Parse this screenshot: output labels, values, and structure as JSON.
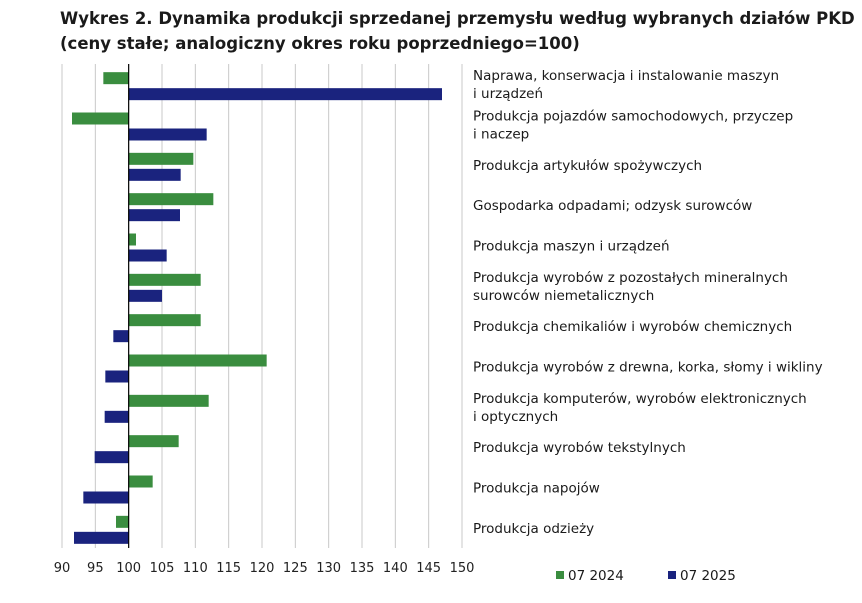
{
  "chart_data": {
    "type": "bar",
    "orientation": "horizontal",
    "title": "Wykres 2. Dynamika produkcji sprzedanej przemysłu według wybranych działów PKD (ceny stałe; analogiczny okres roku poprzedniego=100)",
    "xlim": [
      90,
      150
    ],
    "baseline": 100,
    "xticks": [
      90,
      95,
      100,
      105,
      110,
      115,
      120,
      125,
      130,
      135,
      140,
      145,
      150
    ],
    "grid": true,
    "legend_position": "bottom-right",
    "categories": [
      [
        "Naprawa, konserwacja i instalowanie maszyn",
        "i urządzeń"
      ],
      [
        "Produkcja pojazdów samochodowych, przyczep",
        "i naczep"
      ],
      [
        "Produkcja artykułów spożywczych"
      ],
      [
        "Gospodarka odpadami; odzysk surowców"
      ],
      [
        "Produkcja maszyn i urządzeń"
      ],
      [
        "Produkcja wyrobów z pozostałych mineralnych",
        "surowców niemetalicznych"
      ],
      [
        "Produkcja chemikaliów i wyrobów chemicznych"
      ],
      [
        "Produkcja wyrobów z drewna, korka, słomy i wikliny"
      ],
      [
        "Produkcja komputerów, wyrobów elektronicznych",
        "i optycznych"
      ],
      [
        "Produkcja wyrobów tekstylnych"
      ],
      [
        "Produkcja napojów"
      ],
      [
        "Produkcja odzieży"
      ]
    ],
    "series": [
      {
        "name": "07 2024",
        "color": "#3a8d3f",
        "values": [
          96.2,
          91.5,
          109.7,
          112.7,
          101.1,
          110.8,
          110.8,
          120.7,
          112.0,
          107.5,
          103.6,
          98.1
        ]
      },
      {
        "name": "07 2025",
        "color": "#1a237e",
        "values": [
          147.0,
          111.7,
          107.8,
          107.7,
          105.7,
          105.0,
          97.7,
          96.5,
          96.4,
          94.9,
          93.2,
          91.8
        ]
      }
    ]
  }
}
